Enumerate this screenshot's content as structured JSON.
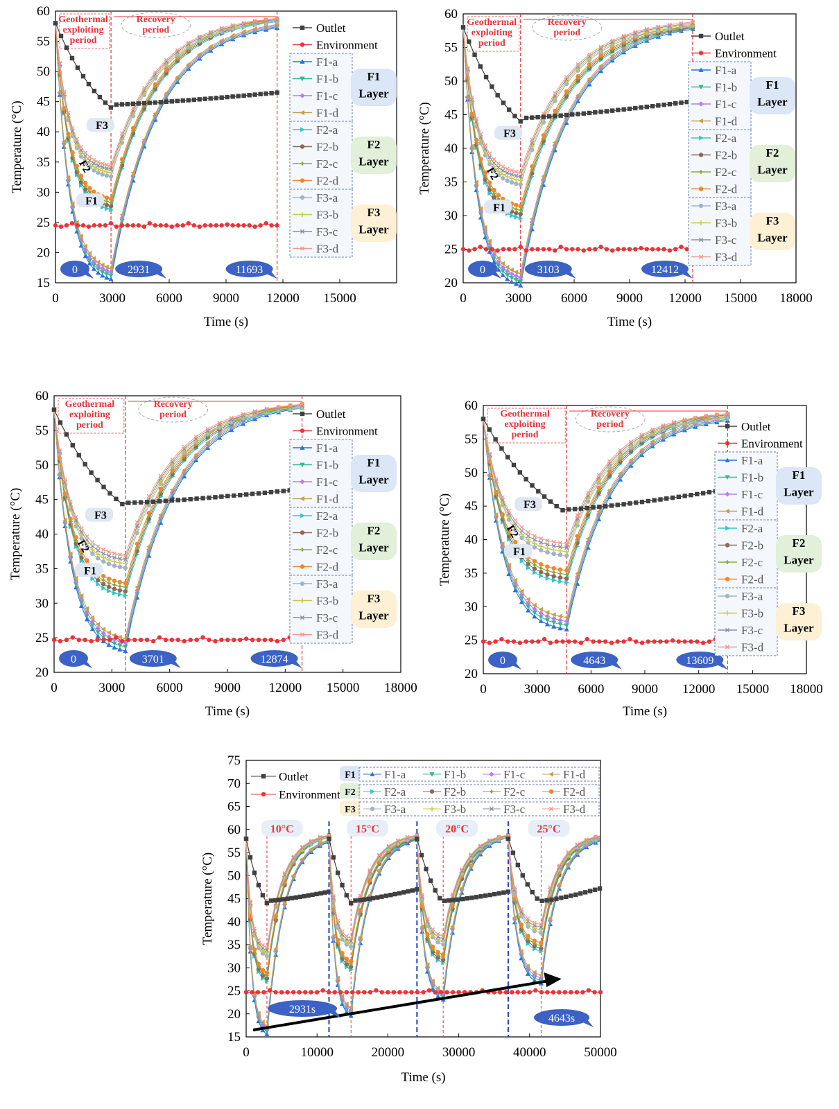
{
  "colors": {
    "outlet": "#404040",
    "environment": "#e8353a",
    "F1-a": "#2f6fd6",
    "F1-b": "#33b98f",
    "F1-c": "#b57cf0",
    "F1-d": "#c6a04a",
    "F2-a": "#2ec7c9",
    "F2-b": "#8c6a5a",
    "F2-c": "#8aa83a",
    "F2-d": "#f0862f",
    "F3-a": "#9fb4c8",
    "F3-b": "#c8c84a",
    "F3-c": "#8a8fa3",
    "F3-d": "#f29a8a",
    "redLine": "#e8353a",
    "blueLine": "#1f3fbf",
    "bubble": "#3b62c4",
    "layerF1": "#dbe6f6",
    "layerF2": "#e2efd9",
    "layerF3": "#fdf0d4"
  },
  "chart_data": [
    {
      "type": "line",
      "panel": "top-left",
      "xlabel": "Time (s)",
      "ylabel": "Temperature (°C)",
      "xlim": [
        0,
        18000
      ],
      "ylim": [
        15,
        60
      ],
      "xticks": [
        0,
        3000,
        6000,
        9000,
        12000,
        15000
      ],
      "yticks": [
        15,
        20,
        25,
        30,
        35,
        40,
        45,
        50,
        55,
        60
      ],
      "stop": 2931,
      "end": 11693,
      "annotations": [
        "Geothermal exploiting period",
        "Recovery period",
        "F1",
        "F2",
        "F3"
      ],
      "markers": [
        "0",
        "2931",
        "11693"
      ],
      "outlet": {
        "start": 58,
        "min": 44,
        "end": 46.5
      },
      "environment": 24.5,
      "layers": {
        "F1": {
          "start": 58,
          "min": 16.5,
          "end": 57.5
        },
        "F2": {
          "start": 58,
          "min": 28,
          "end": 58.5
        },
        "F3": {
          "start": 58,
          "min": 33.5,
          "end": 58.5
        }
      },
      "legend": [
        "Outlet",
        "Environment",
        "F1-a",
        "F1-b",
        "F1-c",
        "F1-d",
        "F2-a",
        "F2-b",
        "F2-c",
        "F2-d",
        "F3-a",
        "F3-b",
        "F3-c",
        "F3-d"
      ],
      "layer_labels": [
        "F1 Layer",
        "F2 Layer",
        "F3 Layer"
      ]
    },
    {
      "type": "line",
      "panel": "top-right",
      "xlabel": "Time (s)",
      "ylabel": "Temperature (°C)",
      "xlim": [
        0,
        18000
      ],
      "ylim": [
        20,
        60
      ],
      "xticks": [
        0,
        3000,
        6000,
        9000,
        12000,
        15000,
        18000
      ],
      "yticks": [
        20,
        25,
        30,
        35,
        40,
        45,
        50,
        55,
        60
      ],
      "stop": 3103,
      "end": 12412,
      "annotations": [
        "Geothermal exploiting period",
        "Recovery period",
        "F1",
        "F2",
        "F3"
      ],
      "markers": [
        "0",
        "3103",
        "12412"
      ],
      "outlet": {
        "start": 58,
        "min": 44,
        "end": 47
      },
      "environment": 25,
      "layers": {
        "F1": {
          "start": 58,
          "min": 20.5,
          "end": 58
        },
        "F2": {
          "start": 58,
          "min": 30.5,
          "end": 58
        },
        "F3": {
          "start": 58,
          "min": 35.5,
          "end": 58.5
        }
      },
      "legend": [
        "Outlet",
        "Environment",
        "F1-a",
        "F1-b",
        "F1-c",
        "F1-d",
        "F2-a",
        "F2-b",
        "F2-c",
        "F2-d",
        "F3-a",
        "F3-b",
        "F3-c",
        "F3-d"
      ],
      "layer_labels": [
        "F1 Layer",
        "F2 Layer",
        "F3 Layer"
      ]
    },
    {
      "type": "line",
      "panel": "middle-left",
      "xlabel": "Time (s)",
      "ylabel": "Temperature (°C)",
      "xlim": [
        0,
        18000
      ],
      "ylim": [
        20,
        60
      ],
      "xticks": [
        0,
        3000,
        6000,
        9000,
        12000,
        15000,
        18000
      ],
      "yticks": [
        20,
        25,
        30,
        35,
        40,
        45,
        50,
        55,
        60
      ],
      "stop": 3701,
      "end": 12874,
      "annotations": [
        "Geothermal exploiting period",
        "Recovery period",
        "F1",
        "F2",
        "F3"
      ],
      "markers": [
        "0",
        "3701",
        "12874"
      ],
      "outlet": {
        "start": 58,
        "min": 44,
        "end": 46.5
      },
      "environment": 24.7,
      "layers": {
        "F1": {
          "start": 58,
          "min": 24,
          "end": 58.5
        },
        "F2": {
          "start": 58,
          "min": 32,
          "end": 58.5
        },
        "F3": {
          "start": 58,
          "min": 36,
          "end": 58.5
        }
      },
      "legend": [
        "Outlet",
        "Environment",
        "F1-a",
        "F1-b",
        "F1-c",
        "F1-d",
        "F2-a",
        "F2-b",
        "F2-c",
        "F2-d",
        "F3-a",
        "F3-b",
        "F3-c",
        "F3-d"
      ],
      "layer_labels": [
        "F1 Layer",
        "F2 Layer",
        "F3 Layer"
      ]
    },
    {
      "type": "line",
      "panel": "middle-right",
      "xlabel": "Time (s)",
      "ylabel": "Temperature (°C)",
      "xlim": [
        0,
        18000
      ],
      "ylim": [
        20,
        60
      ],
      "xticks": [
        0,
        3000,
        6000,
        9000,
        12000,
        15000,
        18000
      ],
      "yticks": [
        20,
        25,
        30,
        35,
        40,
        45,
        50,
        55,
        60
      ],
      "stop": 4643,
      "end": 13609,
      "annotations": [
        "Geothermal exploiting period",
        "Recovery period",
        "F1",
        "F2",
        "F3"
      ],
      "markers": [
        "0",
        "4643",
        "13609"
      ],
      "outlet": {
        "start": 58,
        "min": 44,
        "end": 47.5
      },
      "environment": 24.8,
      "layers": {
        "F1": {
          "start": 58,
          "min": 27.5,
          "end": 58
        },
        "F2": {
          "start": 58,
          "min": 34.5,
          "end": 58.5
        },
        "F3": {
          "start": 58,
          "min": 38.5,
          "end": 58.5
        }
      },
      "legend": [
        "Outlet",
        "Environment",
        "F1-a",
        "F1-b",
        "F1-c",
        "F1-d",
        "F2-a",
        "F2-b",
        "F2-c",
        "F2-d",
        "F3-a",
        "F3-b",
        "F3-c",
        "F3-d"
      ],
      "layer_labels": [
        "F1 Layer",
        "F2 Layer",
        "F3 Layer"
      ]
    },
    {
      "type": "line",
      "panel": "bottom",
      "xlabel": "Time (s)",
      "ylabel": "Temperature (°C)",
      "xlim": [
        0,
        50000
      ],
      "ylim": [
        15,
        75
      ],
      "xticks": [
        0,
        10000,
        20000,
        30000,
        40000,
        50000
      ],
      "yticks": [
        15,
        20,
        25,
        30,
        35,
        40,
        45,
        50,
        55,
        60,
        65,
        70,
        75
      ],
      "cycles": [
        {
          "label": "10°C",
          "start": 0,
          "stop": 2931,
          "end": 11693
        },
        {
          "label": "15°C",
          "start": 11693,
          "stop": 14796,
          "end": 24105
        },
        {
          "label": "20°C",
          "start": 24105,
          "stop": 27806,
          "end": 36979
        },
        {
          "label": "25°C",
          "start": 36979,
          "stop": 41622,
          "end": 50588
        }
      ],
      "markers": [
        "2931s",
        "4643s"
      ],
      "legend_groups": [
        "F1",
        "F2",
        "F3"
      ],
      "legend": [
        "Outlet",
        "Environment",
        "F1-a",
        "F1-b",
        "F1-c",
        "F1-d",
        "F2-a",
        "F2-b",
        "F2-c",
        "F2-d",
        "F3-a",
        "F3-b",
        "F3-c",
        "F3-d"
      ]
    }
  ]
}
